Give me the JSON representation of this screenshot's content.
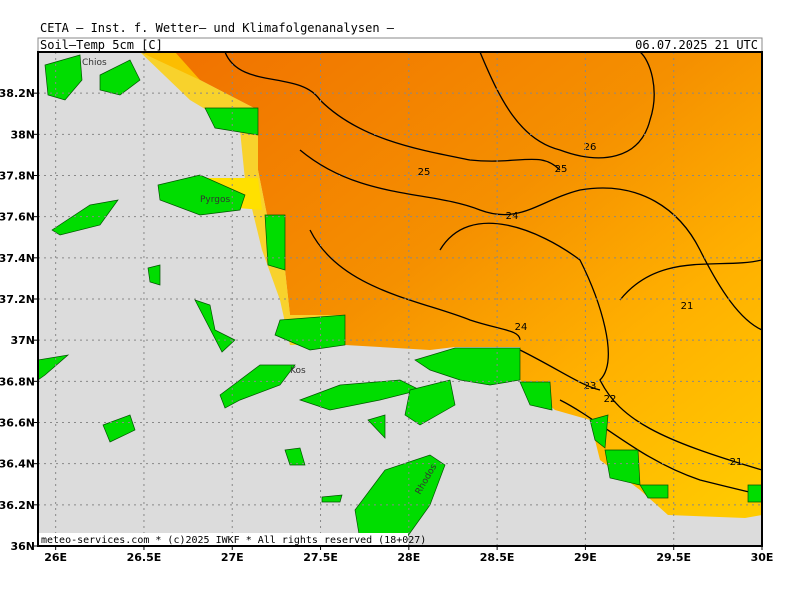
{
  "header": {
    "title": "CETA — Inst. f. Wetter— und Klimafolgenanalysen —",
    "parameter": "Soil—Temp_5cm [C]",
    "timestamp": "06.07.2025 21 UTC"
  },
  "map": {
    "latitude_ticks": [
      {
        "value": 36,
        "label": "36N"
      },
      {
        "value": 36.2,
        "label": "36.2N"
      },
      {
        "value": 36.4,
        "label": "36.4N"
      },
      {
        "value": 36.6,
        "label": "36.6N"
      },
      {
        "value": 36.8,
        "label": "36.8N"
      },
      {
        "value": 37,
        "label": "37N"
      },
      {
        "value": 37.2,
        "label": "37.2N"
      },
      {
        "value": 37.4,
        "label": "37.4N"
      },
      {
        "value": 37.6,
        "label": "37.6N"
      },
      {
        "value": 37.8,
        "label": "37.8N"
      },
      {
        "value": 38,
        "label": "38N"
      },
      {
        "value": 38.2,
        "label": "38.2N"
      }
    ],
    "longitude_ticks": [
      {
        "value": 26,
        "label": "26E"
      },
      {
        "value": 26.5,
        "label": "26.5E"
      },
      {
        "value": 27,
        "label": "27E"
      },
      {
        "value": 27.5,
        "label": "27.5E"
      },
      {
        "value": 28,
        "label": "28E"
      },
      {
        "value": 28.5,
        "label": "28.5E"
      },
      {
        "value": 29,
        "label": "29E"
      },
      {
        "value": 29.5,
        "label": "29.5E"
      },
      {
        "value": 30,
        "label": "30E"
      }
    ],
    "contour_labels": [
      "25",
      "25",
      "26",
      "24",
      "24",
      "21",
      "23",
      "22",
      "21"
    ],
    "place_labels": [
      "Chios",
      "Pyrgos",
      "Kos",
      "Rhodos"
    ],
    "credit": "meteo-services.com * (c)2025 IWKF * All rights reserved (18+027)"
  }
}
